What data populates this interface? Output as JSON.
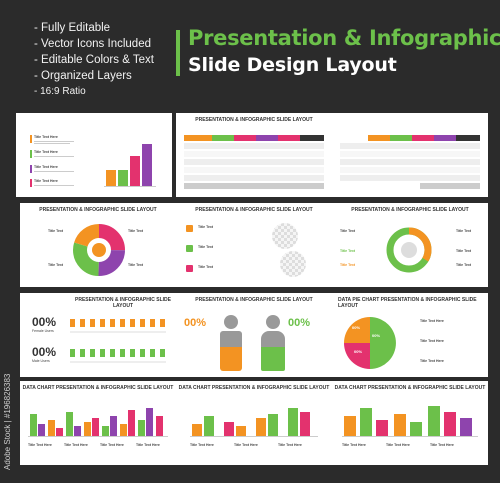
{
  "features": [
    "- Fully Editable",
    "- Vector Icons Included",
    "- Editable Colors & Text",
    "- Organized Layers",
    "- 16:9 Ratio"
  ],
  "header": {
    "title_line1": "Presentation & Infographic",
    "title_line2": "Slide Design Layout"
  },
  "colors": {
    "green": "#6cc04a",
    "orange": "#f39322",
    "purple": "#8e44ad",
    "pink": "#e3326e",
    "background": "#2b2b2b"
  },
  "slides": {
    "std_title": "PRESENTATION & INFOGRAPHIC SLIDE LAYOUT",
    "data_chart_title": "DATA CHART PRESENTATION & INFOGRAPHIC SLIDE LAYOUT",
    "pie_title": "DATA PIE CHART PRESENTATION & INFOGRAPHIC SLIDE LAYOUT",
    "title_text": "Title Text",
    "title_text_here": "Title Text Here",
    "pct_female": "00%",
    "pct_male": "00%",
    "female_users": "Female Users",
    "male_users": "Male Users",
    "pie_pct": "00%"
  },
  "watermark": {
    "id_text": "Adobe Stock | #196826383",
    "brand": "Adobe Stock"
  }
}
